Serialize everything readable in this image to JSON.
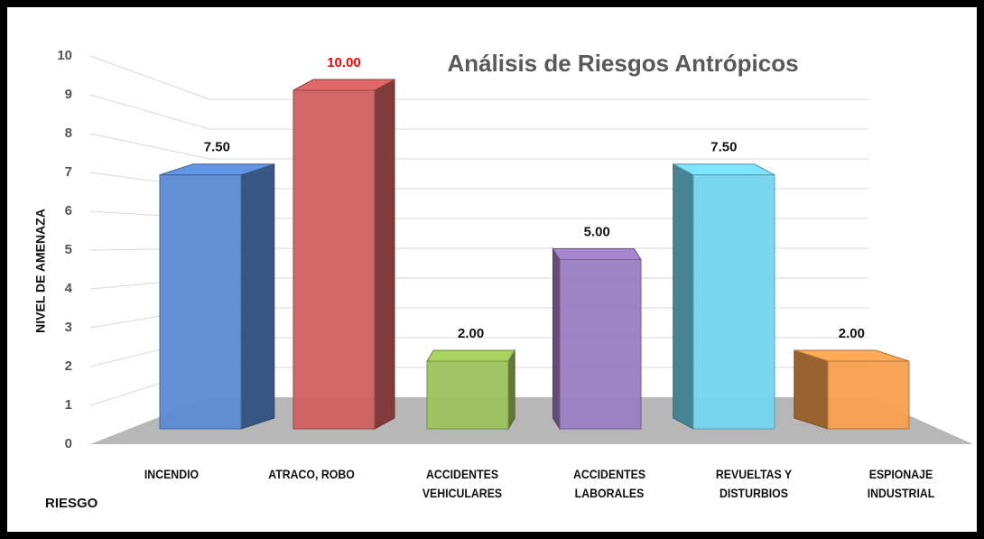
{
  "chart_data": {
    "type": "bar3d",
    "title": "Análisis de Riesgos Antrópicos",
    "x_label": "RIESGO",
    "y_label": "NIVEL DE AMENAZA",
    "categories": [
      "INCENDIO",
      "ATRACO, ROBO",
      "ACCIDENTES VEHICULARES",
      "ACCIDENTES LABORALES",
      "REVUELTAS Y DISTURBIOS",
      "ESPIONAJE INDUSTRIAL"
    ],
    "values": [
      7.5,
      10,
      2,
      5,
      7.5,
      2
    ],
    "value_labels": [
      "7.50",
      "10.00",
      "2.00",
      "5.00",
      "7.50",
      "2.00"
    ],
    "colors": [
      "#5b8ad2",
      "#cf5f5f",
      "#9cc25a",
      "#9a7dc0",
      "#74d4ee",
      "#f79e4f"
    ],
    "value_label_colors": [
      "#111111",
      "#ff0000",
      "#111111",
      "#111111",
      "#111111",
      "#111111"
    ],
    "ylim": [
      0,
      10
    ],
    "yticks": [
      0,
      1,
      2,
      3,
      4,
      5,
      6,
      7,
      8,
      9,
      10
    ],
    "grid": true
  }
}
